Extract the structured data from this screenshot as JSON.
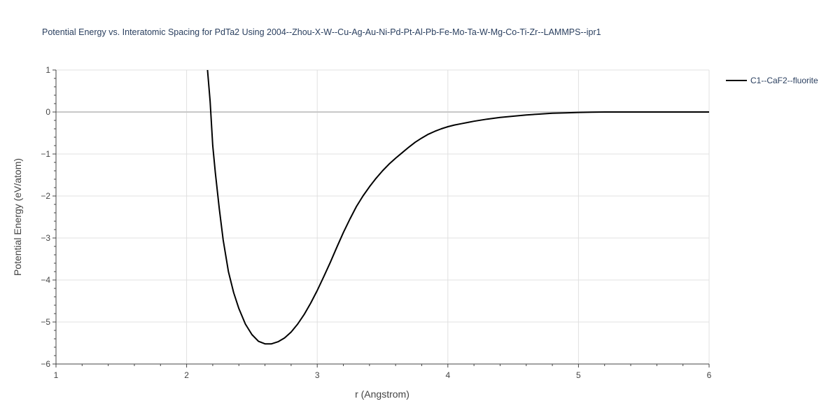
{
  "chart_data": {
    "type": "line",
    "title": "Potential Energy vs. Interatomic Spacing for PdTa2 Using 2004--Zhou-X-W--Cu-Ag-Au-Ni-Pd-Pt-Al-Pb-Fe-Mo-Ta-W-Mg-Co-Ti-Zr--LAMMPS--ipr1",
    "xlabel": "r (Angstrom)",
    "ylabel": "Potential Energy (eV/atom)",
    "xlim": [
      1,
      6
    ],
    "ylim": [
      -6,
      1
    ],
    "xticks": [
      1,
      2,
      3,
      4,
      5,
      6
    ],
    "yticks": [
      1,
      0,
      -1,
      -2,
      -3,
      -4,
      -5,
      -6
    ],
    "ytick_labels": [
      "1",
      "0",
      "−1",
      "−2",
      "−3",
      "−4",
      "−5",
      "−6"
    ],
    "grid": true,
    "legend_position": "top-right",
    "series": [
      {
        "name": "C1--CaF2--fluorite",
        "color": "#000000",
        "x": [
          2.16,
          2.18,
          2.2,
          2.22,
          2.25,
          2.28,
          2.32,
          2.36,
          2.4,
          2.45,
          2.5,
          2.55,
          2.6,
          2.65,
          2.7,
          2.75,
          2.8,
          2.85,
          2.9,
          2.95,
          3.0,
          3.05,
          3.1,
          3.15,
          3.2,
          3.25,
          3.3,
          3.35,
          3.4,
          3.45,
          3.5,
          3.55,
          3.6,
          3.65,
          3.7,
          3.75,
          3.8,
          3.85,
          3.9,
          3.95,
          4.0,
          4.05,
          4.1,
          4.15,
          4.2,
          4.3,
          4.4,
          4.5,
          4.6,
          4.7,
          4.8,
          4.9,
          5.0,
          5.1,
          5.2,
          5.3,
          5.5,
          6.0
        ],
        "y": [
          1.0,
          0.25,
          -0.8,
          -1.45,
          -2.3,
          -3.05,
          -3.8,
          -4.3,
          -4.68,
          -5.05,
          -5.3,
          -5.46,
          -5.52,
          -5.52,
          -5.47,
          -5.38,
          -5.24,
          -5.05,
          -4.82,
          -4.55,
          -4.25,
          -3.92,
          -3.58,
          -3.22,
          -2.87,
          -2.55,
          -2.25,
          -2.0,
          -1.78,
          -1.58,
          -1.4,
          -1.24,
          -1.1,
          -0.97,
          -0.84,
          -0.72,
          -0.62,
          -0.53,
          -0.46,
          -0.4,
          -0.35,
          -0.31,
          -0.28,
          -0.25,
          -0.22,
          -0.17,
          -0.13,
          -0.1,
          -0.07,
          -0.05,
          -0.03,
          -0.02,
          -0.01,
          -0.005,
          0.0,
          0.0,
          0.0,
          0.0
        ]
      }
    ]
  }
}
